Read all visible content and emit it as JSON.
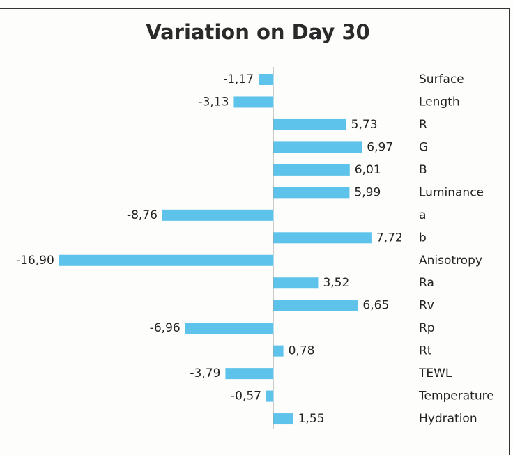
{
  "chart_data": {
    "type": "barh",
    "title": "Variation on Day 30",
    "categories": [
      "Surface",
      "Length",
      "R",
      "G",
      "B",
      "Luminance",
      "a",
      "b",
      "Anisotropy",
      "Ra",
      "Rv",
      "Rp",
      "Rt",
      "TEWL",
      "Temperature",
      "Hydration"
    ],
    "values": [
      -1.17,
      -3.13,
      5.73,
      6.97,
      6.01,
      5.99,
      -8.76,
      7.72,
      -16.9,
      3.52,
      6.65,
      -6.96,
      0.78,
      -3.79,
      -0.57,
      1.55
    ],
    "value_labels": [
      "-1,17",
      "-3,13",
      "5,73",
      "6,97",
      "6,01",
      "5,99",
      "-8,76",
      "7,72",
      "-16,90",
      "3,52",
      "6,65",
      "-6,96",
      "0,78",
      "-3,79",
      "-0,57",
      "1,55"
    ],
    "color": "#5ec3ea",
    "xlim": [
      -17,
      8
    ]
  }
}
